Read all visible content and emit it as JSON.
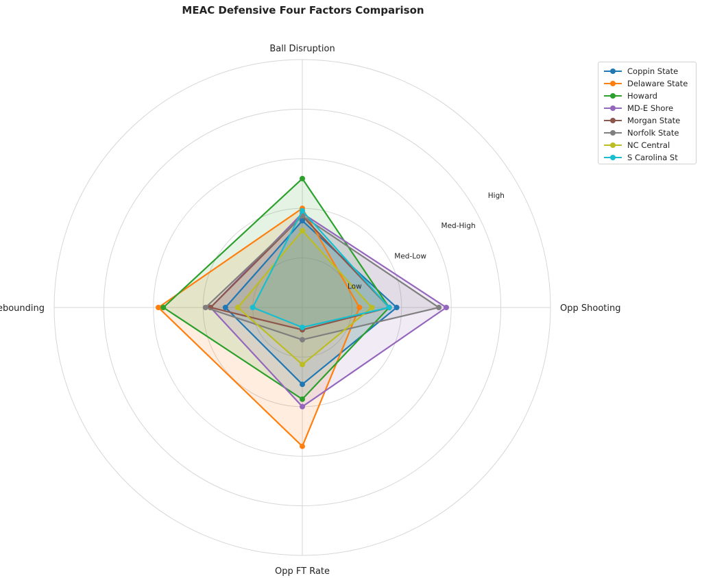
{
  "chart_data": {
    "type": "radar",
    "title": "MEAC Defensive Four Factors Comparison",
    "axes": [
      "Ball Disruption",
      "Opp Shooting",
      "Opp FT Rate",
      "Def Rebounding"
    ],
    "range": [
      0,
      5
    ],
    "ring_labels": [
      "Low",
      "Med-Low",
      "Med-High",
      "High"
    ],
    "grid": true,
    "legend_position": "top-right",
    "series": [
      {
        "name": "Coppin State",
        "color": "#1f77b4",
        "values": [
          1.75,
          1.9,
          1.55,
          1.55
        ]
      },
      {
        "name": "Delaware State",
        "color": "#ff7f0e",
        "values": [
          2.0,
          1.15,
          2.8,
          2.9
        ]
      },
      {
        "name": "Howard",
        "color": "#2ca02c",
        "values": [
          2.6,
          1.75,
          1.85,
          2.8
        ]
      },
      {
        "name": "MD-E Shore",
        "color": "#9467bd",
        "values": [
          1.9,
          2.9,
          2.0,
          1.85
        ]
      },
      {
        "name": "Morgan State",
        "color": "#8c564b",
        "values": [
          1.85,
          1.75,
          0.45,
          1.85
        ]
      },
      {
        "name": "Norfolk State",
        "color": "#7f7f7f",
        "values": [
          1.85,
          2.75,
          0.65,
          1.95
        ]
      },
      {
        "name": "NC Central",
        "color": "#bcbd22",
        "values": [
          1.55,
          1.4,
          1.15,
          1.3
        ]
      },
      {
        "name": "S Carolina St",
        "color": "#17becf",
        "values": [
          1.95,
          1.75,
          0.4,
          1.0
        ]
      }
    ]
  }
}
